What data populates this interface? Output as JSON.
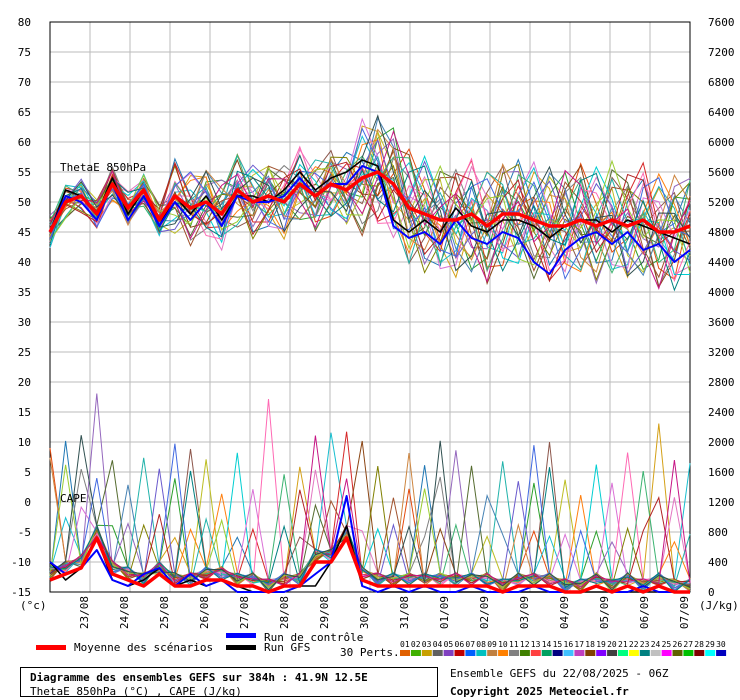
{
  "chart_data": {
    "type": "line",
    "title": "Diagramme des ensembles GEFS sur 384h : 41.9N 12.5E",
    "subtitle": "ThetaE 850hPa (°C) , CAPE (J/kg)",
    "left_axis": {
      "unit": "(°c)",
      "ylim": [
        -15,
        80
      ],
      "ticks": [
        80,
        75,
        70,
        65,
        60,
        55,
        50,
        45,
        40,
        35,
        30,
        25,
        20,
        15,
        10,
        5,
        0,
        -5,
        -10,
        -15
      ]
    },
    "right_axis": {
      "unit": "(J/kg)",
      "ylim": [
        0,
        7600
      ],
      "ticks": [
        7600,
        7200,
        6800,
        6400,
        6000,
        5600,
        5200,
        4800,
        4400,
        4000,
        3600,
        3200,
        2800,
        2400,
        2000,
        1600,
        1200,
        800,
        400,
        0
      ]
    },
    "x_labels": [
      "23/08",
      "24/08",
      "25/08",
      "26/08",
      "27/08",
      "28/08",
      "29/08",
      "30/08",
      "31/08",
      "01/09",
      "02/09",
      "03/09",
      "04/09",
      "05/09",
      "06/09",
      "07/09"
    ],
    "grid": true,
    "panel_labels": {
      "thetae": "ThetaE 850hPa",
      "cape": "CAPE"
    },
    "series": [
      {
        "name": "Moyenne des scénarios",
        "color": "#ff0000",
        "thetae": [
          45,
          50,
          51,
          48,
          53,
          49,
          52,
          47,
          51,
          49,
          50,
          48,
          52,
          50,
          51,
          50,
          53,
          51,
          53,
          52,
          54,
          55,
          53,
          49,
          48,
          47,
          47,
          48,
          46,
          48,
          48,
          47,
          46,
          46,
          47,
          46,
          47,
          46,
          47,
          45,
          45,
          46
        ],
        "cape": [
          -13,
          -12,
          -11,
          -6,
          -12,
          -13,
          -14,
          -12,
          -14,
          -14,
          -13,
          -13,
          -14,
          -14,
          -15,
          -14,
          -14,
          -10,
          -10,
          -6,
          -13,
          -14,
          -14,
          -14,
          -14,
          -14,
          -14,
          -14,
          -14,
          -15,
          -14,
          -14,
          -14,
          -15,
          -15,
          -14,
          -15,
          -14,
          -15,
          -14,
          -15,
          -15
        ]
      },
      {
        "name": "Run de contrôle",
        "color": "#0000ff",
        "thetae": [
          45,
          51,
          50,
          47,
          53,
          47,
          51,
          46,
          50,
          47,
          50,
          46,
          51,
          50,
          50,
          51,
          54,
          51,
          53,
          53,
          56,
          55,
          46,
          44,
          45,
          43,
          47,
          44,
          43,
          45,
          44,
          40,
          38,
          42,
          44,
          45,
          43,
          45,
          42,
          43,
          40,
          42
        ],
        "cape": [
          -10,
          -12,
          -11,
          -8,
          -13,
          -14,
          -12,
          -11,
          -14,
          -12,
          -14,
          -13,
          -15,
          -15,
          -15,
          -15,
          -14,
          -12,
          -10,
          1,
          -14,
          -15,
          -14,
          -15,
          -14,
          -15,
          -15,
          -14,
          -15,
          -15,
          -15,
          -14,
          -15,
          -15,
          -15,
          -14,
          -15,
          -15,
          -14,
          -15,
          -15,
          -15
        ]
      },
      {
        "name": "Run GFS",
        "color": "#000000",
        "thetae": [
          45,
          52,
          51,
          48,
          54,
          48,
          52,
          46,
          51,
          48,
          51,
          47,
          51,
          51,
          50,
          52,
          55,
          52,
          54,
          55,
          57,
          56,
          47,
          45,
          47,
          45,
          49,
          46,
          45,
          47,
          47,
          46,
          44,
          46,
          47,
          47,
          45,
          47,
          46,
          45,
          44,
          43
        ],
        "cape": [
          -10,
          -13,
          -11,
          -6,
          -13,
          -14,
          -13,
          -11,
          -14,
          -13,
          -14,
          -13,
          -14,
          -15,
          -15,
          -15,
          -14,
          -14,
          -10,
          -4,
          -14,
          -15,
          -15,
          -15,
          -15,
          -15,
          -15,
          -15,
          -15,
          -15,
          -15,
          -15,
          -15,
          -15,
          -15,
          -15,
          -15,
          -15,
          -15,
          -15,
          -15,
          -15
        ]
      }
    ],
    "perturbation_colors": [
      "#e34a0c",
      "#2ca02c",
      "#d4a017",
      "#1f77b4",
      "#8c564b",
      "#e377c2",
      "#7f7f7f",
      "#bcbd22",
      "#17becf",
      "#9467bd",
      "#ff7f0e",
      "#d62728",
      "#556b2f",
      "#00ced1",
      "#8b4513",
      "#4682b4",
      "#da70d6",
      "#808000",
      "#20b2aa",
      "#ff69b4",
      "#a0522d",
      "#6a5acd",
      "#3cb371",
      "#cd853f",
      "#4169e1",
      "#b22222",
      "#9acd32",
      "#008080",
      "#c71585",
      "#2f4f4f"
    ]
  },
  "legend": {
    "mean_label": "Moyenne des scénarios",
    "control_label": "Run de contrôle",
    "gfs_label": "Run GFS",
    "perts_label": "30 Perts.",
    "pert_numbers": [
      "01",
      "02",
      "03",
      "04",
      "05",
      "06",
      "07",
      "08",
      "09",
      "10",
      "11",
      "12",
      "13",
      "14",
      "15",
      "16",
      "17",
      "18",
      "19",
      "20",
      "21",
      "22",
      "23",
      "24",
      "25",
      "26",
      "27",
      "28",
      "29",
      "30"
    ],
    "pert_swatch_colors": [
      "#e06000",
      "#40b000",
      "#c8a000",
      "#606060",
      "#8040c0",
      "#c00000",
      "#0060ff",
      "#00c0c0",
      "#c08040",
      "#ff8000",
      "#808080",
      "#408000",
      "#ff4040",
      "#00a060",
      "#000080",
      "#40c0ff",
      "#c040c0",
      "#804000",
      "#8000ff",
      "#404040",
      "#00ff80",
      "#ffff00",
      "#008080",
      "#c0c0c0",
      "#ff00ff",
      "#606000",
      "#00c000",
      "#800000",
      "#00ffff",
      "#0000c0"
    ]
  },
  "footer": {
    "title": "Diagramme des ensembles GEFS sur 384h : 41.9N 12.5E",
    "subtitle": "ThetaE 850hPa (°C) , CAPE (J/kg)",
    "run_date": "Ensemble GEFS du 22/08/2025 - 06Z",
    "copyright": "Copyright 2025 Meteociel.fr"
  }
}
